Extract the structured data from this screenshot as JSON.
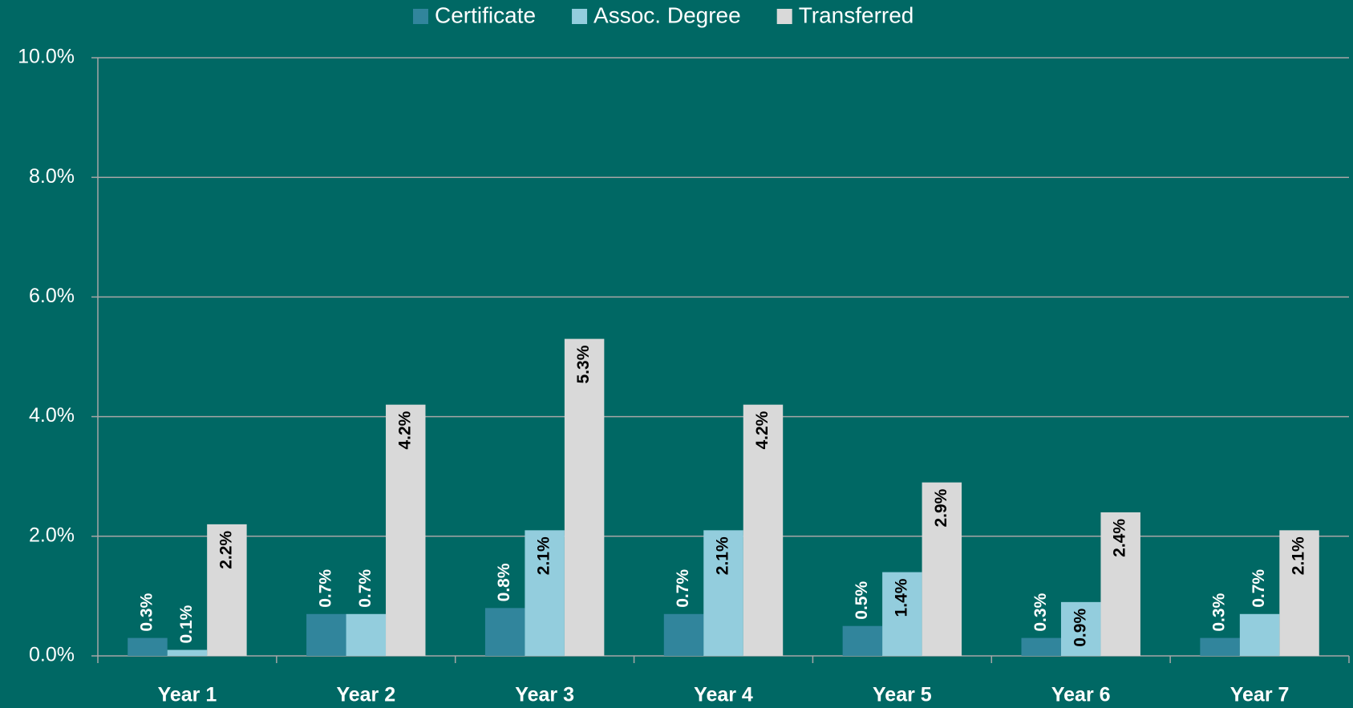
{
  "chart_data": {
    "type": "bar",
    "categories": [
      "Year 1",
      "Year 2",
      "Year 3",
      "Year 4",
      "Year 5",
      "Year 6",
      "Year 7"
    ],
    "series": [
      {
        "name": "Certificate",
        "color": "#31859c",
        "values": [
          0.3,
          0.7,
          0.8,
          0.7,
          0.5,
          0.3,
          0.3
        ],
        "value_labels": [
          "0.3%",
          "0.7%",
          "0.8%",
          "0.7%",
          "0.5%",
          "0.3%",
          "0.3%"
        ]
      },
      {
        "name": "Assoc. Degree",
        "color": "#93cddd",
        "values": [
          0.1,
          0.7,
          2.1,
          2.1,
          1.4,
          0.9,
          0.7
        ],
        "value_labels": [
          "0.1%",
          "0.7%",
          "2.1%",
          "2.1%",
          "1.4%",
          "0.9%",
          "0.7%"
        ]
      },
      {
        "name": "Transferred",
        "color": "#d9d9d9",
        "values": [
          2.2,
          4.2,
          5.3,
          4.2,
          2.9,
          2.4,
          2.1
        ],
        "value_labels": [
          "2.2%",
          "4.2%",
          "5.3%",
          "4.2%",
          "2.9%",
          "2.4%",
          "2.1%"
        ]
      }
    ],
    "ylim": [
      0,
      10
    ],
    "yticks": [
      {
        "value": 0,
        "label": "0.0%"
      },
      {
        "value": 2,
        "label": "2.0%"
      },
      {
        "value": 4,
        "label": "4.0%"
      },
      {
        "value": 6,
        "label": "6.0%"
      },
      {
        "value": 8,
        "label": "8.0%"
      },
      {
        "value": 10,
        "label": "10.0%"
      }
    ],
    "grid": true,
    "legend": "top"
  }
}
